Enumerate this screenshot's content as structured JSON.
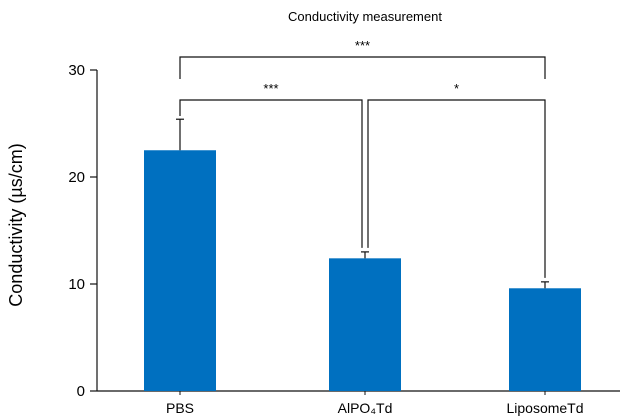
{
  "chart_data": {
    "type": "bar",
    "title": "Conductivity measurement",
    "ylabel": "Conductivity (µs/cm)",
    "xlabel": "",
    "categories": [
      "PBS",
      "AlPO₄Td",
      "LiposomeTd"
    ],
    "values": [
      22.5,
      12.4,
      9.6
    ],
    "errors": [
      2.9,
      0.6,
      0.6
    ],
    "ylim": [
      0,
      30
    ],
    "yticks": [
      0,
      10,
      20,
      30
    ],
    "bar_color": "#0070c0",
    "grid": false,
    "significance": [
      {
        "from": 0,
        "to": 2,
        "label": "***"
      },
      {
        "from": 0,
        "to": 1,
        "label": "***"
      },
      {
        "from": 1,
        "to": 2,
        "label": "*"
      }
    ]
  }
}
